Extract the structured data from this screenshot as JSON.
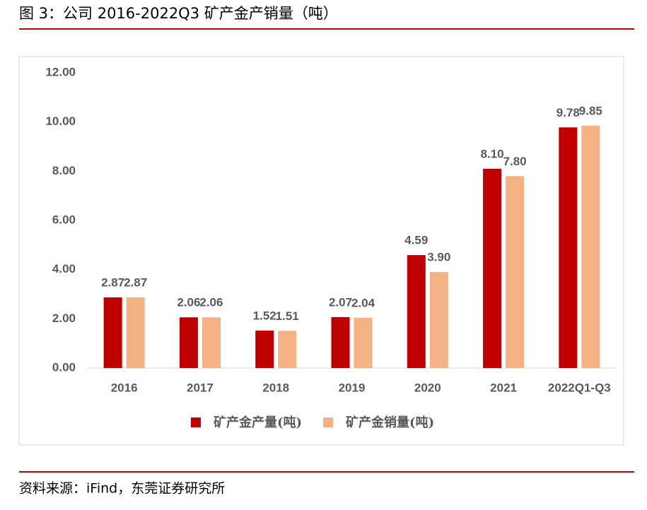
{
  "chart_data": {
    "type": "bar",
    "title": "图 3：公司 2016-2022Q3 矿产金产销量（吨）",
    "source": "资料来源：iFind，东莞证券研究所",
    "categories": [
      "2016",
      "2017",
      "2018",
      "2019",
      "2020",
      "2021",
      "2022Q1-Q3"
    ],
    "series": [
      {
        "name": "矿产金产量(吨)",
        "color": "#c00000",
        "values": [
          2.87,
          2.06,
          1.52,
          2.07,
          4.59,
          8.1,
          9.78
        ],
        "value_labels": [
          "2.87",
          "2.06",
          "1.52",
          "2.07",
          "4.59",
          "8.10",
          "9.78"
        ]
      },
      {
        "name": "矿产金销量(吨)",
        "color": "#f4b183",
        "values": [
          2.87,
          2.06,
          1.51,
          2.04,
          3.9,
          7.8,
          9.85
        ],
        "value_labels": [
          "2.87",
          "2.06",
          "1.51",
          "2.04",
          "3.90",
          "7.80",
          "9.85"
        ]
      }
    ],
    "ylim": [
      0,
      12
    ],
    "yticks": [
      {
        "value": 0,
        "label": "0.00"
      },
      {
        "value": 2,
        "label": "2.00"
      },
      {
        "value": 4,
        "label": "4.00"
      },
      {
        "value": 6,
        "label": "6.00"
      },
      {
        "value": 8,
        "label": "8.00"
      },
      {
        "value": 10,
        "label": "10.00"
      },
      {
        "value": 12,
        "label": "12.00"
      }
    ],
    "grid": false
  }
}
